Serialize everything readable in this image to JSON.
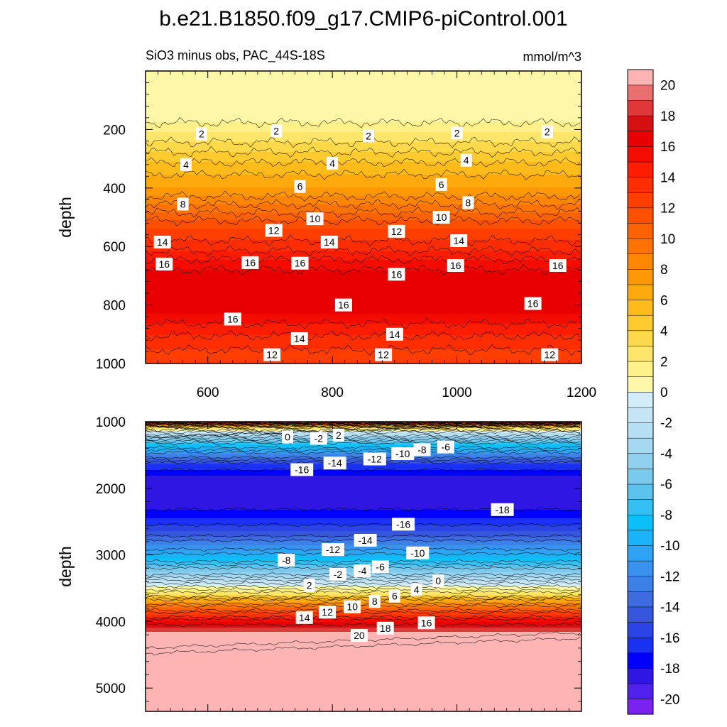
{
  "title": "b.e21.B1850.f09_g17.CMIP6-piControl.001",
  "chart_data": [
    {
      "type": "contour",
      "subtitle_left": "SiO3 minus obs, PAC_44S-18S",
      "subtitle_right": "mmol/m^3",
      "ylabel": "depth",
      "x_range": [
        500,
        1200
      ],
      "y_range": [
        0,
        1000
      ],
      "x_ticks": [
        600,
        800,
        1000,
        1200
      ],
      "x_tick_labels": [
        "600",
        "800",
        "1000",
        "1200"
      ],
      "y_ticks": [
        200,
        400,
        600,
        800,
        1000
      ],
      "y_tick_labels": [
        "200",
        "400",
        "600",
        "800",
        "1000"
      ],
      "depth_profile": [
        [
          0,
          0.5
        ],
        [
          160,
          0.5
        ],
        [
          210,
          2
        ],
        [
          260,
          3.5
        ],
        [
          330,
          5.5
        ],
        [
          400,
          7
        ],
        [
          470,
          9.5
        ],
        [
          540,
          12
        ],
        [
          600,
          13.5
        ],
        [
          660,
          15.5
        ],
        [
          700,
          16.5
        ],
        [
          780,
          16.8
        ],
        [
          830,
          16
        ],
        [
          880,
          14.5
        ],
        [
          930,
          13.5
        ],
        [
          1000,
          12
        ]
      ],
      "contour_labels": [
        {
          "text": "2",
          "x": 590,
          "y": 215
        },
        {
          "text": "2",
          "x": 710,
          "y": 205
        },
        {
          "text": "2",
          "x": 858,
          "y": 222
        },
        {
          "text": "2",
          "x": 1000,
          "y": 212
        },
        {
          "text": "2",
          "x": 1145,
          "y": 208
        },
        {
          "text": "4",
          "x": 565,
          "y": 320
        },
        {
          "text": "4",
          "x": 800,
          "y": 315
        },
        {
          "text": "4",
          "x": 1015,
          "y": 305
        },
        {
          "text": "6",
          "x": 748,
          "y": 395
        },
        {
          "text": "6",
          "x": 975,
          "y": 388
        },
        {
          "text": "8",
          "x": 560,
          "y": 455
        },
        {
          "text": "8",
          "x": 1018,
          "y": 450
        },
        {
          "text": "10",
          "x": 772,
          "y": 505
        },
        {
          "text": "10",
          "x": 975,
          "y": 500
        },
        {
          "text": "12",
          "x": 706,
          "y": 545
        },
        {
          "text": "12",
          "x": 903,
          "y": 548
        },
        {
          "text": "14",
          "x": 527,
          "y": 585
        },
        {
          "text": "14",
          "x": 795,
          "y": 585
        },
        {
          "text": "14",
          "x": 1003,
          "y": 580
        },
        {
          "text": "16",
          "x": 530,
          "y": 660
        },
        {
          "text": "16",
          "x": 668,
          "y": 655
        },
        {
          "text": "16",
          "x": 748,
          "y": 657
        },
        {
          "text": "16",
          "x": 903,
          "y": 695
        },
        {
          "text": "16",
          "x": 998,
          "y": 665
        },
        {
          "text": "16",
          "x": 1162,
          "y": 665
        },
        {
          "text": "16",
          "x": 818,
          "y": 800
        },
        {
          "text": "16",
          "x": 1122,
          "y": 795
        },
        {
          "text": "16",
          "x": 640,
          "y": 848
        },
        {
          "text": "14",
          "x": 747,
          "y": 915
        },
        {
          "text": "14",
          "x": 900,
          "y": 900
        },
        {
          "text": "12",
          "x": 703,
          "y": 970
        },
        {
          "text": "12",
          "x": 882,
          "y": 970
        },
        {
          "text": "12",
          "x": 1149,
          "y": 970
        }
      ]
    },
    {
      "type": "contour",
      "ylabel": "depth",
      "x_range": [
        500,
        1200
      ],
      "y_range": [
        1000,
        5350
      ],
      "x_ticks": [
        600,
        800,
        1000,
        1200
      ],
      "y_ticks": [
        1000,
        2000,
        3000,
        4000,
        5000
      ],
      "y_tick_labels": [
        "1000",
        "2000",
        "3000",
        "4000",
        "5000"
      ],
      "depth_profile": [
        [
          1000,
          20
        ],
        [
          1050,
          8
        ],
        [
          1100,
          2
        ],
        [
          1180,
          -2
        ],
        [
          1350,
          -8
        ],
        [
          1500,
          -12
        ],
        [
          1650,
          -16
        ],
        [
          1800,
          -18
        ],
        [
          2000,
          -18.8
        ],
        [
          2250,
          -18.5
        ],
        [
          2450,
          -17
        ],
        [
          2650,
          -15
        ],
        [
          2850,
          -12
        ],
        [
          3050,
          -9
        ],
        [
          3250,
          -5
        ],
        [
          3400,
          -1.5
        ],
        [
          3500,
          0.5
        ],
        [
          3600,
          3
        ],
        [
          3700,
          7
        ],
        [
          3800,
          10
        ],
        [
          3900,
          13
        ],
        [
          4000,
          16
        ],
        [
          4100,
          18
        ],
        [
          4200,
          19.5
        ],
        [
          4350,
          21
        ]
      ],
      "contour_labels": [
        {
          "text": "0",
          "x": 728,
          "y": 1230
        },
        {
          "text": "-2",
          "x": 778,
          "y": 1250
        },
        {
          "text": "2",
          "x": 810,
          "y": 1200
        },
        {
          "text": "-8",
          "x": 944,
          "y": 1420
        },
        {
          "text": "-6",
          "x": 982,
          "y": 1380
        },
        {
          "text": "-16",
          "x": 751,
          "y": 1720
        },
        {
          "text": "-14",
          "x": 804,
          "y": 1620
        },
        {
          "text": "-12",
          "x": 868,
          "y": 1560
        },
        {
          "text": "-10",
          "x": 913,
          "y": 1480
        },
        {
          "text": "-18",
          "x": 1073,
          "y": 2320
        },
        {
          "text": "-16",
          "x": 914,
          "y": 2540
        },
        {
          "text": "-14",
          "x": 853,
          "y": 2780
        },
        {
          "text": "-12",
          "x": 801,
          "y": 2920
        },
        {
          "text": "-10",
          "x": 937,
          "y": 2970
        },
        {
          "text": "-8",
          "x": 726,
          "y": 3080
        },
        {
          "text": "-6",
          "x": 877,
          "y": 3180
        },
        {
          "text": "-4",
          "x": 848,
          "y": 3240
        },
        {
          "text": "-2",
          "x": 809,
          "y": 3290
        },
        {
          "text": "2",
          "x": 763,
          "y": 3460
        },
        {
          "text": "0",
          "x": 970,
          "y": 3390
        },
        {
          "text": "4",
          "x": 935,
          "y": 3520
        },
        {
          "text": "6",
          "x": 900,
          "y": 3620
        },
        {
          "text": "8",
          "x": 868,
          "y": 3700
        },
        {
          "text": "10",
          "x": 832,
          "y": 3780
        },
        {
          "text": "12",
          "x": 792,
          "y": 3860
        },
        {
          "text": "14",
          "x": 755,
          "y": 3940
        },
        {
          "text": "16",
          "x": 951,
          "y": 4020
        },
        {
          "text": "18",
          "x": 885,
          "y": 4100
        },
        {
          "text": "20",
          "x": 843,
          "y": 4210
        }
      ]
    }
  ],
  "colorbar": {
    "levels": [
      -21,
      -20,
      -19,
      -18,
      -17,
      -16,
      -15,
      -14,
      -13,
      -12,
      -11,
      -10,
      -9,
      -8,
      -7,
      -6,
      -5,
      -4,
      -3,
      -2,
      -1,
      0,
      1,
      2,
      3,
      4,
      5,
      6,
      7,
      8,
      9,
      10,
      11,
      12,
      13,
      14,
      15,
      16,
      17,
      18,
      19,
      20,
      21
    ],
    "tick_labels": [
      "20",
      "18",
      "16",
      "14",
      "12",
      "10",
      "8",
      "6",
      "4",
      "2",
      "0",
      "-2",
      "-4",
      "-6",
      "-8",
      "-10",
      "-12",
      "-14",
      "-16",
      "-18",
      "-20"
    ],
    "colors": [
      "#7a23f0",
      "#5020ec",
      "#2f16e3",
      "#0000ff",
      "#1a30f2",
      "#2a44e8",
      "#3657dd",
      "#3c6ce0",
      "#3d80e8",
      "#3a92ef",
      "#2fa4f4",
      "#1ab3f7",
      "#09c0f8",
      "#35c0f3",
      "#5cc3ef",
      "#7bc9ed",
      "#92d0ef",
      "#a5d8f1",
      "#b5dff3",
      "#c5e5f5",
      "#d3ecf9",
      "#fff7a8",
      "#fff08a",
      "#ffe56a",
      "#ffd94a",
      "#ffca2e",
      "#ffbb1a",
      "#ffaa0c",
      "#ff9804",
      "#ff8600",
      "#ff7400",
      "#ff6200",
      "#ff5000",
      "#ff3e00",
      "#ff2d00",
      "#ff1c00",
      "#f50c00",
      "#e80000",
      "#d61010",
      "#e03838",
      "#ea7070",
      "#ffb4b4"
    ]
  }
}
